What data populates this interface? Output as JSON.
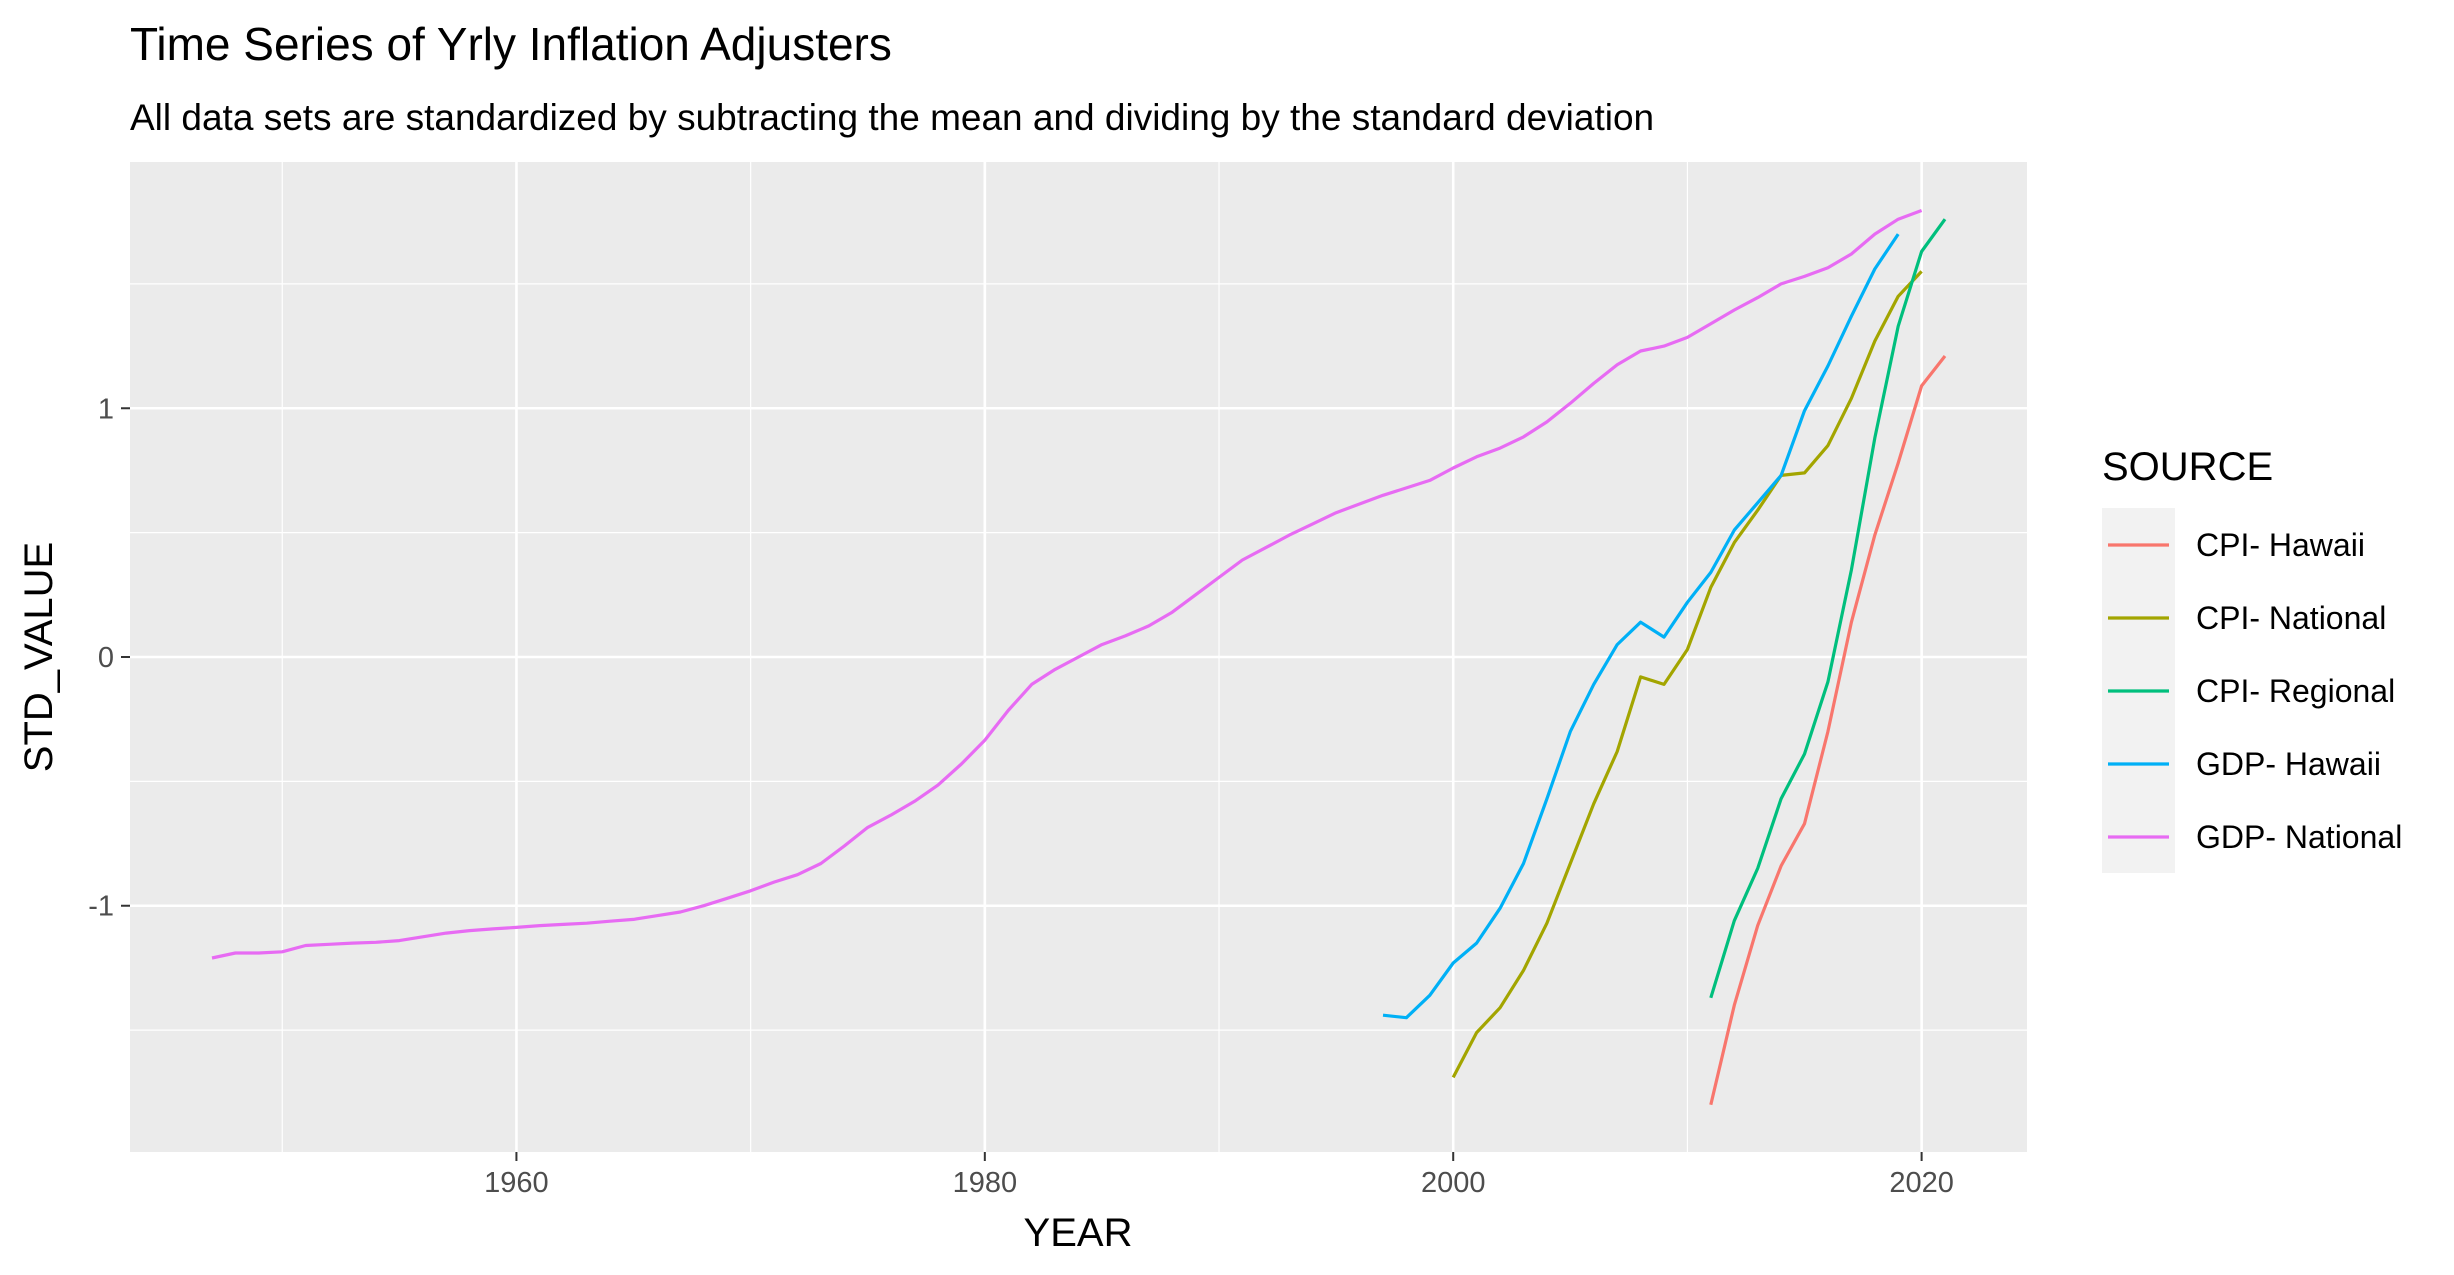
{
  "chart_data": {
    "type": "line",
    "title": "Time Series of Yrly Inflation Adjusters",
    "subtitle": "All data sets are standardized by subtracting the mean and dividing by the standard deviation",
    "xlabel": "YEAR",
    "ylabel": "STD_VALUE",
    "xlim": [
      1943.5,
      2024.5
    ],
    "ylim": [
      -1.99,
      1.99
    ],
    "x_ticks": [
      1960,
      1980,
      2000,
      2020
    ],
    "x_minor": [
      1950,
      1970,
      1990,
      2010
    ],
    "y_ticks": [
      -1,
      0,
      1
    ],
    "y_minor": [
      -1.5,
      -0.5,
      0.5,
      1.5
    ],
    "grid": true,
    "legend_title": "SOURCE",
    "legend_position": "right",
    "series": [
      {
        "name": "CPI- Hawaii",
        "color": "#F8766D",
        "points": [
          [
            2011,
            -1.8
          ],
          [
            2012,
            -1.4
          ],
          [
            2013,
            -1.08
          ],
          [
            2014,
            -0.84
          ],
          [
            2015,
            -0.67
          ],
          [
            2016,
            -0.3
          ],
          [
            2017,
            0.14
          ],
          [
            2018,
            0.49
          ],
          [
            2019,
            0.78
          ],
          [
            2020,
            1.09
          ],
          [
            2021,
            1.21
          ]
        ]
      },
      {
        "name": "CPI- National",
        "color": "#A3A500",
        "points": [
          [
            2000,
            -1.69
          ],
          [
            2001,
            -1.51
          ],
          [
            2002,
            -1.41
          ],
          [
            2003,
            -1.26
          ],
          [
            2004,
            -1.07
          ],
          [
            2005,
            -0.83
          ],
          [
            2006,
            -0.59
          ],
          [
            2007,
            -0.38
          ],
          [
            2008,
            -0.08
          ],
          [
            2009,
            -0.11
          ],
          [
            2010,
            0.03
          ],
          [
            2011,
            0.28
          ],
          [
            2012,
            0.46
          ],
          [
            2013,
            0.59
          ],
          [
            2014,
            0.73
          ],
          [
            2015,
            0.74
          ],
          [
            2016,
            0.85
          ],
          [
            2017,
            1.04
          ],
          [
            2018,
            1.27
          ],
          [
            2019,
            1.45
          ],
          [
            2020,
            1.55
          ]
        ]
      },
      {
        "name": "CPI- Regional",
        "color": "#00BF7D",
        "points": [
          [
            2011,
            -1.37
          ],
          [
            2012,
            -1.06
          ],
          [
            2013,
            -0.85
          ],
          [
            2014,
            -0.57
          ],
          [
            2015,
            -0.39
          ],
          [
            2016,
            -0.1
          ],
          [
            2017,
            0.35
          ],
          [
            2018,
            0.88
          ],
          [
            2019,
            1.33
          ],
          [
            2020,
            1.63
          ],
          [
            2021,
            1.76
          ]
        ]
      },
      {
        "name": "GDP- Hawaii",
        "color": "#00B0F6",
        "points": [
          [
            1997,
            -1.44
          ],
          [
            1998,
            -1.45
          ],
          [
            1999,
            -1.36
          ],
          [
            2000,
            -1.23
          ],
          [
            2001,
            -1.15
          ],
          [
            2002,
            -1.01
          ],
          [
            2003,
            -0.83
          ],
          [
            2004,
            -0.57
          ],
          [
            2005,
            -0.3
          ],
          [
            2006,
            -0.11
          ],
          [
            2007,
            0.05
          ],
          [
            2008,
            0.14
          ],
          [
            2009,
            0.08
          ],
          [
            2010,
            0.22
          ],
          [
            2011,
            0.34
          ],
          [
            2012,
            0.51
          ],
          [
            2013,
            0.62
          ],
          [
            2014,
            0.73
          ],
          [
            2015,
            0.99
          ],
          [
            2016,
            1.17
          ],
          [
            2017,
            1.37
          ],
          [
            2018,
            1.56
          ],
          [
            2019,
            1.7
          ]
        ]
      },
      {
        "name": "GDP- National",
        "color": "#E76BF3",
        "points": [
          [
            1947,
            -1.21
          ],
          [
            1948,
            -1.19
          ],
          [
            1949,
            -1.19
          ],
          [
            1950,
            -1.185
          ],
          [
            1951,
            -1.16
          ],
          [
            1952,
            -1.155
          ],
          [
            1953,
            -1.15
          ],
          [
            1954,
            -1.147
          ],
          [
            1955,
            -1.14
          ],
          [
            1956,
            -1.125
          ],
          [
            1957,
            -1.11
          ],
          [
            1958,
            -1.1
          ],
          [
            1959,
            -1.093
          ],
          [
            1960,
            -1.087
          ],
          [
            1961,
            -1.08
          ],
          [
            1962,
            -1.075
          ],
          [
            1963,
            -1.07
          ],
          [
            1964,
            -1.062
          ],
          [
            1965,
            -1.055
          ],
          [
            1966,
            -1.04
          ],
          [
            1967,
            -1.025
          ],
          [
            1968,
            -1.0
          ],
          [
            1969,
            -0.97
          ],
          [
            1970,
            -0.94
          ],
          [
            1971,
            -0.905
          ],
          [
            1972,
            -0.875
          ],
          [
            1973,
            -0.83
          ],
          [
            1974,
            -0.76
          ],
          [
            1975,
            -0.685
          ],
          [
            1976,
            -0.635
          ],
          [
            1977,
            -0.58
          ],
          [
            1978,
            -0.515
          ],
          [
            1979,
            -0.43
          ],
          [
            1980,
            -0.335
          ],
          [
            1981,
            -0.215
          ],
          [
            1982,
            -0.11
          ],
          [
            1983,
            -0.05
          ],
          [
            1984,
            0.0
          ],
          [
            1985,
            0.05
          ],
          [
            1986,
            0.085
          ],
          [
            1987,
            0.125
          ],
          [
            1988,
            0.18
          ],
          [
            1989,
            0.25
          ],
          [
            1990,
            0.32
          ],
          [
            1991,
            0.39
          ],
          [
            1992,
            0.44
          ],
          [
            1993,
            0.49
          ],
          [
            1994,
            0.535
          ],
          [
            1995,
            0.58
          ],
          [
            1996,
            0.615
          ],
          [
            1997,
            0.65
          ],
          [
            1998,
            0.68
          ],
          [
            1999,
            0.71
          ],
          [
            2000,
            0.76
          ],
          [
            2001,
            0.805
          ],
          [
            2002,
            0.84
          ],
          [
            2003,
            0.885
          ],
          [
            2004,
            0.945
          ],
          [
            2005,
            1.02
          ],
          [
            2006,
            1.1
          ],
          [
            2007,
            1.175
          ],
          [
            2008,
            1.23
          ],
          [
            2009,
            1.25
          ],
          [
            2010,
            1.285
          ],
          [
            2011,
            1.34
          ],
          [
            2012,
            1.395
          ],
          [
            2013,
            1.445
          ],
          [
            2014,
            1.5
          ],
          [
            2015,
            1.53
          ],
          [
            2016,
            1.565
          ],
          [
            2017,
            1.62
          ],
          [
            2018,
            1.7
          ],
          [
            2019,
            1.76
          ],
          [
            2020,
            1.795
          ]
        ]
      }
    ]
  }
}
